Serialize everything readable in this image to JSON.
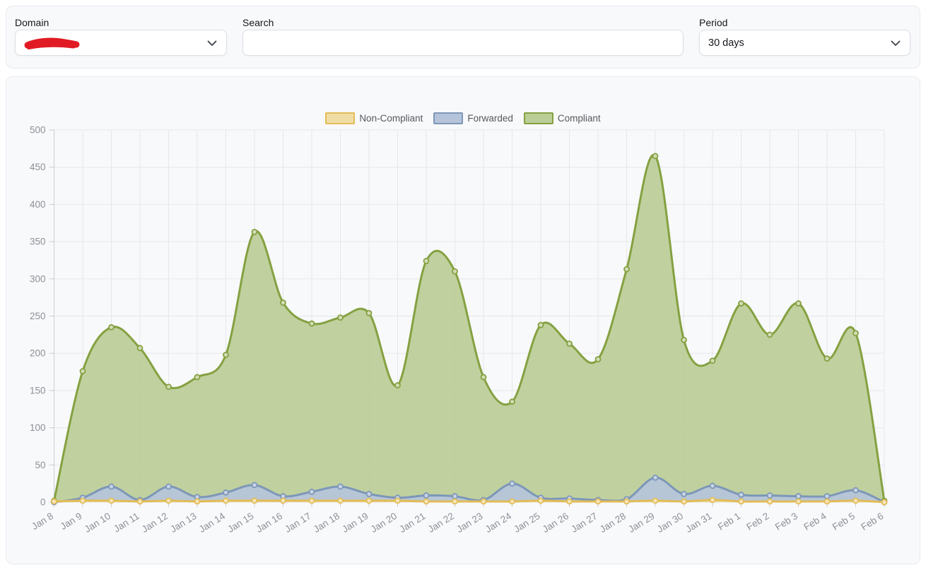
{
  "filters": {
    "domain": {
      "label": "Domain",
      "value_redacted": true
    },
    "search": {
      "label": "Search",
      "value": "",
      "placeholder": ""
    },
    "period": {
      "label": "Period",
      "value": "30 days"
    }
  },
  "chart_data": {
    "type": "area",
    "stacked": false,
    "title": "",
    "xlabel": "",
    "ylabel": "",
    "ylim": [
      0,
      500
    ],
    "y_tick_step": 50,
    "grid": true,
    "legend_position": "top",
    "x": [
      "Jan 8",
      "Jan 9",
      "Jan 10",
      "Jan 11",
      "Jan 12",
      "Jan 13",
      "Jan 14",
      "Jan 15",
      "Jan 16",
      "Jan 17",
      "Jan 18",
      "Jan 19",
      "Jan 20",
      "Jan 21",
      "Jan 22",
      "Jan 23",
      "Jan 24",
      "Jan 25",
      "Jan 26",
      "Jan 27",
      "Jan 28",
      "Jan 29",
      "Jan 30",
      "Jan 31",
      "Feb 1",
      "Feb 2",
      "Feb 3",
      "Feb 4",
      "Feb 5",
      "Feb 6"
    ],
    "series": [
      {
        "name": "Non-Compliant",
        "stroke": "#e2bc56",
        "fill": "#f0dda6",
        "marker_fill": "#f5e5ba",
        "values": [
          1,
          2,
          2,
          1,
          2,
          1,
          2,
          2,
          2,
          2,
          2,
          2,
          2,
          1,
          1,
          1,
          1,
          2,
          1,
          1,
          1,
          2,
          1,
          3,
          1,
          1,
          1,
          1,
          2,
          0
        ]
      },
      {
        "name": "Forwarded",
        "stroke": "#7d97b8",
        "fill": "#b5c4da",
        "marker_fill": "#c7d3e5",
        "values": [
          0,
          6,
          21,
          3,
          21,
          7,
          13,
          23,
          8,
          14,
          21,
          11,
          6,
          9,
          8,
          3,
          25,
          6,
          5,
          3,
          4,
          33,
          11,
          22,
          10,
          9,
          8,
          8,
          16,
          0
        ]
      },
      {
        "name": "Compliant",
        "stroke": "#85a141",
        "fill": "#bbcd97",
        "marker_fill": "#d2dcb6",
        "values": [
          2,
          176,
          235,
          207,
          155,
          168,
          198,
          363,
          268,
          240,
          248,
          254,
          157,
          324,
          310,
          168,
          135,
          238,
          213,
          192,
          313,
          465,
          218,
          190,
          267,
          225,
          267,
          193,
          227,
          2
        ]
      }
    ]
  },
  "colors": {
    "card_bg": "#f8f9fb",
    "card_border": "#e9ebee",
    "grid_line": "#e5e7eb",
    "axis_line": "#c9cdd2",
    "tick_label": "#8b9096",
    "legend_text": "#55595e",
    "redaction_scribble": "#e01b24"
  }
}
